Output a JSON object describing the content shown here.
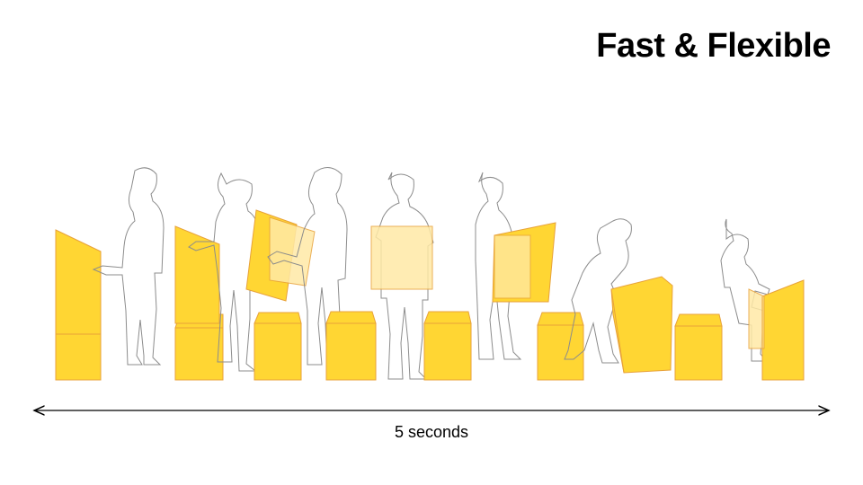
{
  "title": "Fast & Flexible",
  "caption": "5 seconds",
  "colors": {
    "box_fill": "#FFD633",
    "box_edge": "#E8A23A",
    "translucent_fill": "#FFE9A6",
    "figure_stroke": "#8C8C8C",
    "arrow": "#000000"
  },
  "sequence": {
    "stages": 9,
    "person_outline_icon": "person-silhouette-icon",
    "furniture": "foldable-box"
  }
}
